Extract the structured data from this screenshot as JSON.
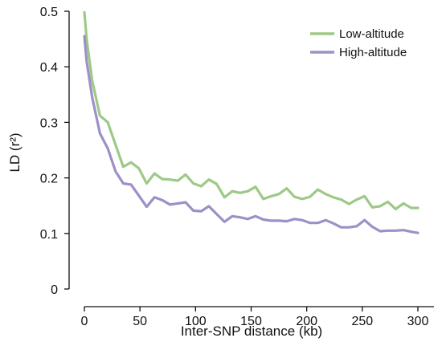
{
  "chart_data": {
    "type": "line",
    "title": "",
    "xlabel": "Inter-SNP distance (kb)",
    "ylabel": "LD (r²)",
    "xlim": [
      -5,
      310
    ],
    "ylim": [
      0,
      0.5
    ],
    "xticks": [
      0,
      50,
      100,
      150,
      200,
      250,
      300
    ],
    "yticks": [
      0,
      0.1,
      0.2,
      0.3,
      0.4,
      0.5
    ],
    "xtick_labels": [
      "0",
      "50",
      "100",
      "150",
      "200",
      "250",
      "300"
    ],
    "ytick_labels": [
      "0",
      "0.1",
      "0.2",
      "0.3",
      "0.4",
      "0.5"
    ],
    "grid": false,
    "legend_position": "top-right",
    "x": [
      0,
      2,
      7,
      14,
      21,
      28,
      35,
      42,
      49,
      56,
      63,
      70,
      77,
      84,
      91,
      98,
      105,
      112,
      119,
      126,
      133,
      140,
      147,
      154,
      161,
      168,
      175,
      182,
      189,
      196,
      203,
      210,
      217,
      224,
      231,
      238,
      245,
      252,
      259,
      266,
      273,
      280,
      287,
      294,
      300
    ],
    "series": [
      {
        "name": "Low-altitude",
        "color": "#9dc986",
        "values": [
          0.498,
          0.45,
          0.375,
          0.312,
          0.3,
          0.26,
          0.22,
          0.228,
          0.217,
          0.19,
          0.208,
          0.198,
          0.197,
          0.195,
          0.206,
          0.19,
          0.185,
          0.197,
          0.189,
          0.165,
          0.176,
          0.173,
          0.176,
          0.184,
          0.162,
          0.167,
          0.171,
          0.181,
          0.166,
          0.162,
          0.166,
          0.179,
          0.171,
          0.165,
          0.161,
          0.153,
          0.161,
          0.167,
          0.147,
          0.149,
          0.157,
          0.144,
          0.154,
          0.146,
          0.146
        ]
      },
      {
        "name": "High-altitude",
        "color": "#9d90c8",
        "values": [
          0.455,
          0.41,
          0.345,
          0.28,
          0.253,
          0.212,
          0.19,
          0.188,
          0.168,
          0.148,
          0.165,
          0.16,
          0.152,
          0.154,
          0.156,
          0.141,
          0.14,
          0.149,
          0.135,
          0.121,
          0.131,
          0.129,
          0.126,
          0.131,
          0.125,
          0.123,
          0.123,
          0.122,
          0.126,
          0.124,
          0.119,
          0.119,
          0.124,
          0.118,
          0.111,
          0.111,
          0.113,
          0.124,
          0.112,
          0.104,
          0.105,
          0.105,
          0.106,
          0.103,
          0.101
        ]
      }
    ]
  }
}
